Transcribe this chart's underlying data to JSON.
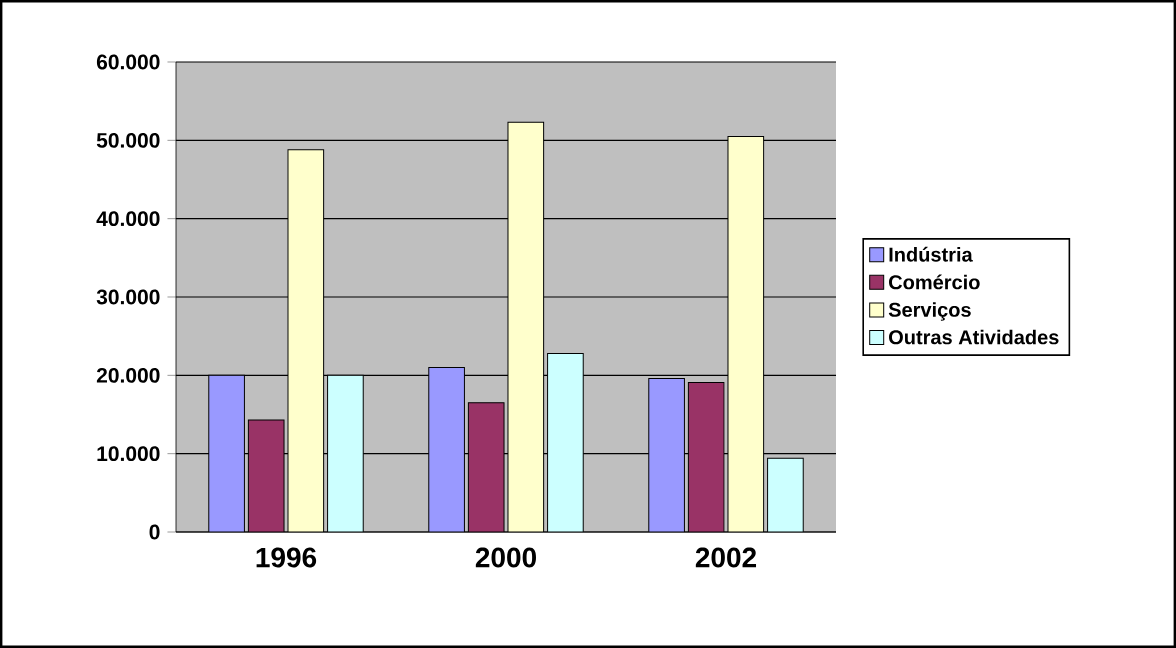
{
  "chart_data": {
    "type": "bar",
    "categories": [
      "1996",
      "2000",
      "2002"
    ],
    "series": [
      {
        "name": "Indústria",
        "color": "#9999ff",
        "values": [
          20000,
          21000,
          19600
        ]
      },
      {
        "name": "Comércio",
        "color": "#993366",
        "values": [
          14300,
          16500,
          19100
        ]
      },
      {
        "name": "Serviços",
        "color": "#ffffcc",
        "values": [
          48800,
          52300,
          50500
        ]
      },
      {
        "name": "Outras Atividades",
        "color": "#ccffff",
        "values": [
          20000,
          22800,
          9400
        ]
      }
    ],
    "ylim": [
      0,
      60000
    ],
    "yticks": [
      {
        "value": 0,
        "label": "0"
      },
      {
        "value": 10000,
        "label": "10.000"
      },
      {
        "value": 20000,
        "label": "20.000"
      },
      {
        "value": 30000,
        "label": "30.000"
      },
      {
        "value": 40000,
        "label": "40.000"
      },
      {
        "value": 50000,
        "label": "50.000"
      },
      {
        "value": 60000,
        "label": "60.000"
      }
    ],
    "grid": "y",
    "legend": "right"
  }
}
